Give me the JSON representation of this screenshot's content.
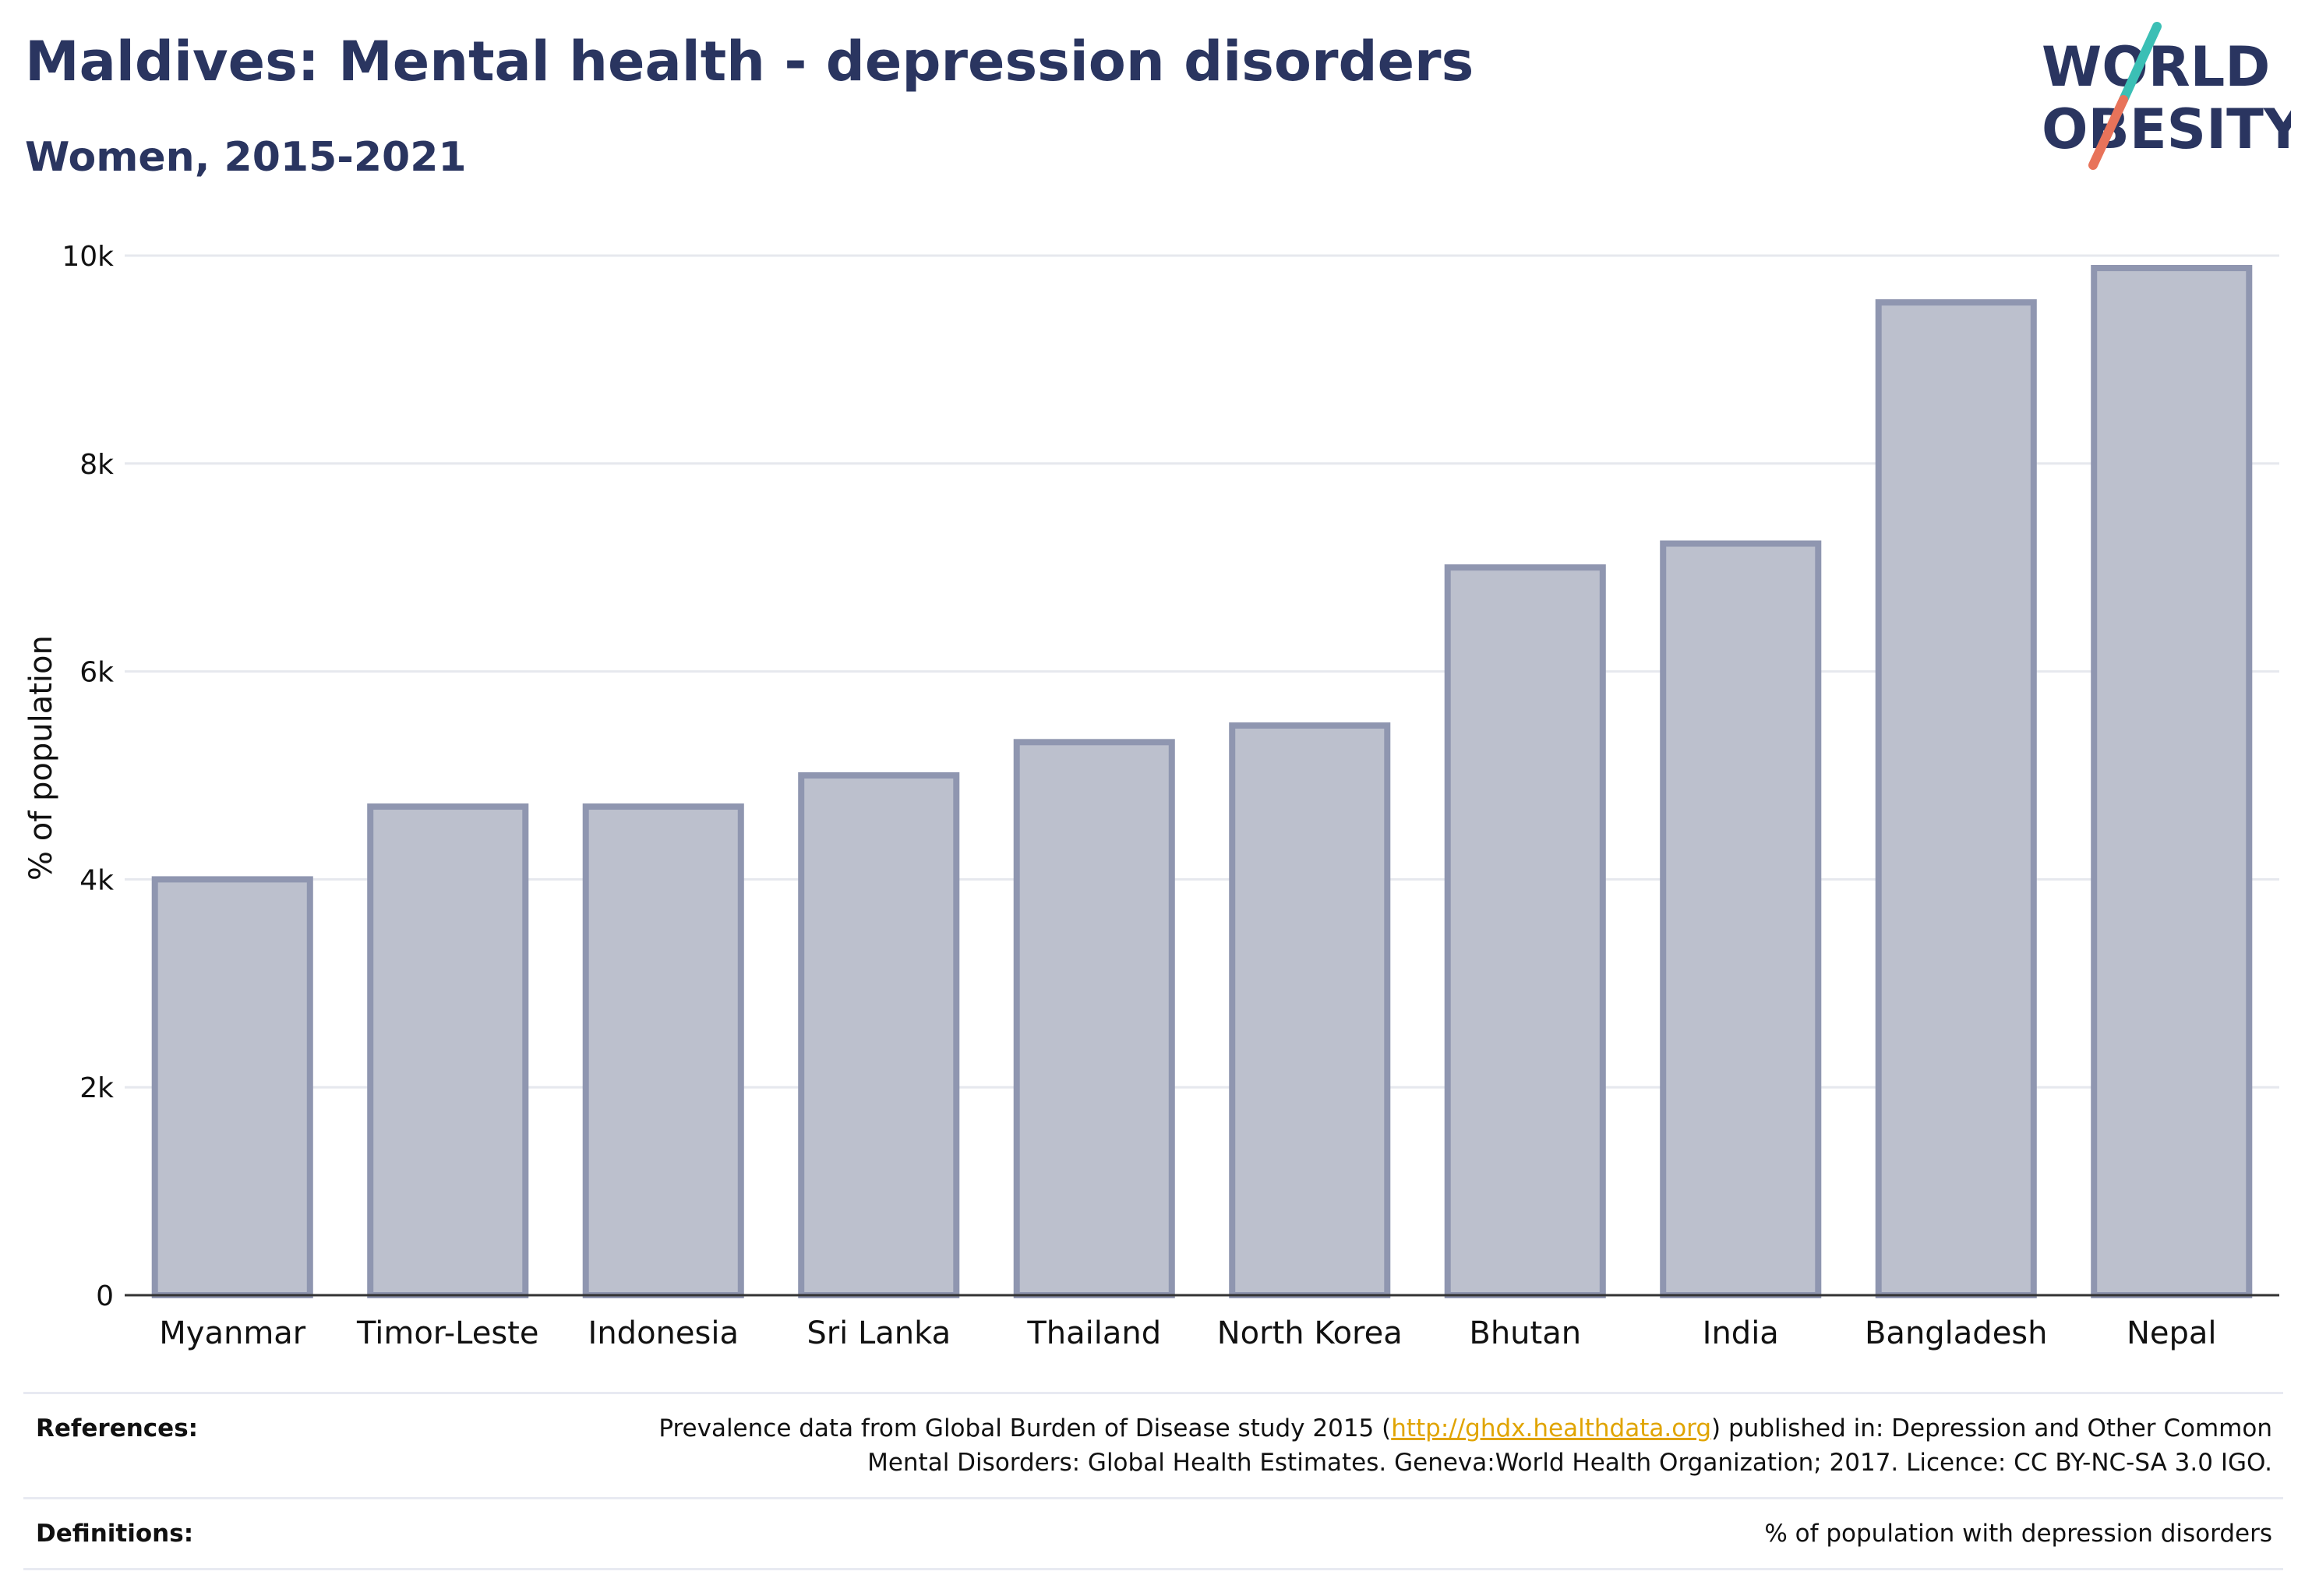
{
  "header": {
    "title": "Maldives: Mental health - depression disorders",
    "subtitle": "Women, 2015-2021"
  },
  "logo": {
    "line1": "WORLD",
    "line2": "OBESITY",
    "accent_teal": "#3bbfb5",
    "accent_coral": "#e8735a",
    "text_color": "#2a3560"
  },
  "chart_data": {
    "type": "bar",
    "categories": [
      "Myanmar",
      "Timor-Leste",
      "Indonesia",
      "Sri Lanka",
      "Thailand",
      "North Korea",
      "Bhutan",
      "India",
      "Bangladesh",
      "Nepal"
    ],
    "values": [
      4000,
      4700,
      4700,
      5000,
      5320,
      5480,
      7000,
      7230,
      9550,
      9880
    ],
    "title": "",
    "xlabel": "",
    "ylabel": "% of population",
    "ylim": [
      0,
      10000
    ],
    "yticks": [
      0,
      2000,
      4000,
      6000,
      8000,
      10000
    ],
    "ytick_labels": [
      "0",
      "2k",
      "4k",
      "6k",
      "8k",
      "10k"
    ],
    "grid": true,
    "bar_color": "#bcc0cd",
    "bar_edge_color": "#8f96b0"
  },
  "footer": {
    "references_label": "References:",
    "references_text_pre": "Prevalence data from Global Burden of Disease study 2015 (",
    "references_link": "http://ghdx.healthdata.org",
    "references_text_post": ") published in: Depression and Other Common",
    "references_text_line2": "Mental Disorders: Global Health Estimates. Geneva:World Health Organization; 2017. Licence: CC BY-NC-SA 3.0 IGO.",
    "definitions_label": "Definitions:",
    "definitions_text": "% of population with depression disorders"
  }
}
